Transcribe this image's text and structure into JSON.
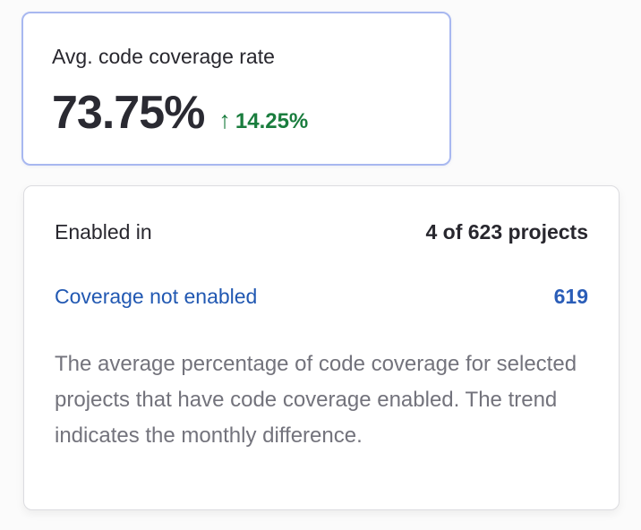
{
  "metric_card": {
    "title": "Avg. code coverage rate",
    "value": "73.75%",
    "trend": {
      "arrow": "↑",
      "value": "14.25%"
    }
  },
  "details": {
    "enabled_label": "Enabled in",
    "enabled_value": "4 of 623 projects",
    "not_enabled_label": "Coverage not enabled",
    "not_enabled_count": "619",
    "description": "The average percentage of code coverage for selected projects that have code coverage enabled. The trend indicates the monthly difference."
  },
  "colors": {
    "page_background": "#fbfbfb",
    "selected_card_border": "#a8b8f0",
    "card_border": "#dcdce0",
    "text_dark": "#28272e",
    "metric_value": "#2a2a32",
    "trend_green": "#1a7d3e",
    "link_blue": "#2158b2",
    "count_blue": "#2a5db8",
    "description_gray": "#73737c"
  }
}
